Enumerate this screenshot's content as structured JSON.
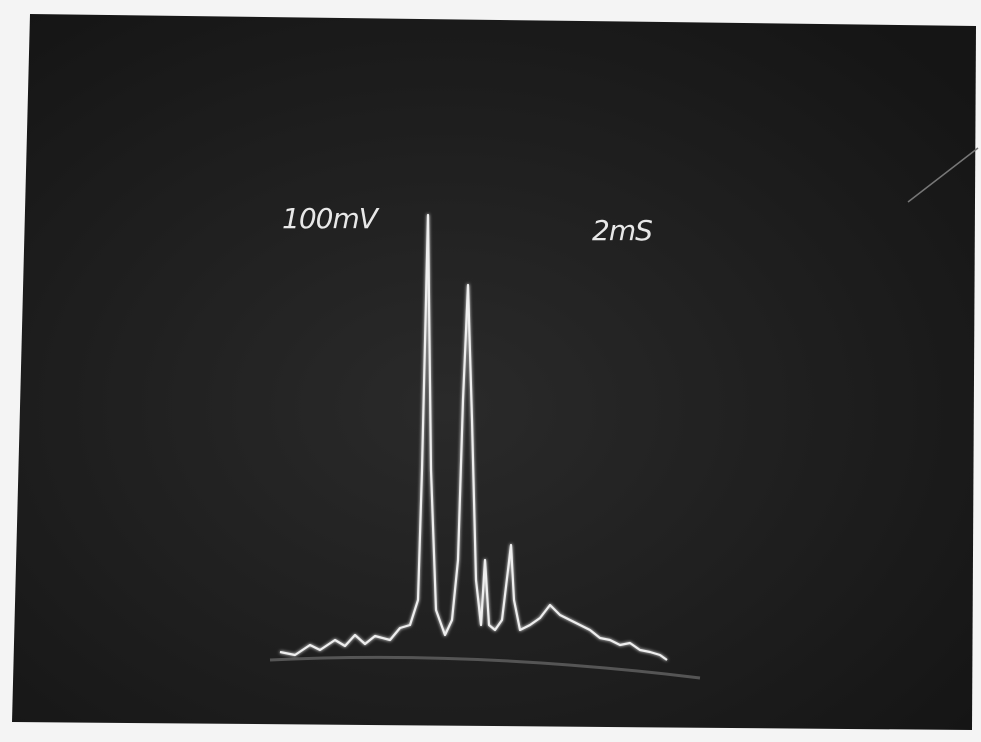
{
  "labels": {
    "vertical_scale": "100mV",
    "time_scale": "2mS"
  }
}
